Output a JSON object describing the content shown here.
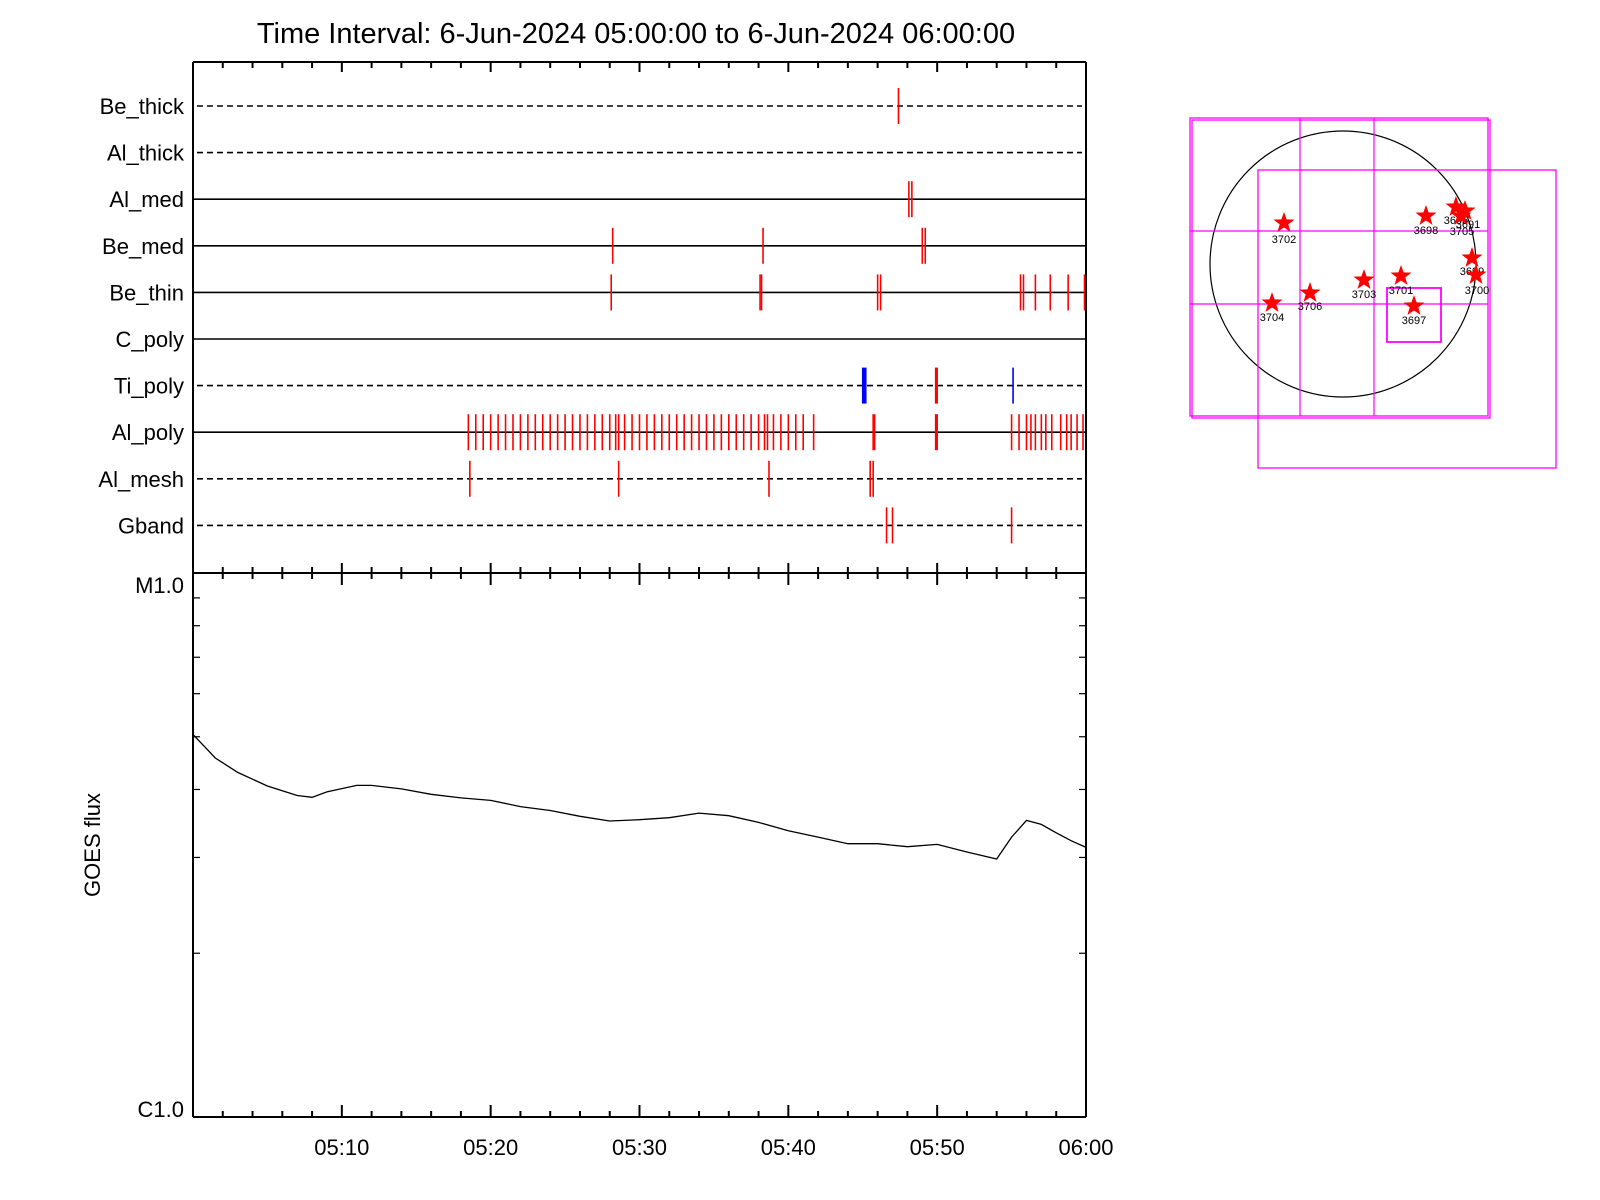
{
  "title": "Time Interval:  6-Jun-2024 05:00:00 to  6-Jun-2024 06:00:00",
  "chart_data": [
    {
      "type": "event-timeline",
      "xlim": [
        "05:00",
        "06:00"
      ],
      "x_tick_labels": [
        "05:10",
        "05:20",
        "05:30",
        "05:40",
        "05:50",
        "06:00"
      ],
      "colors": {
        "frame": "#000000",
        "event_red": "#ff0000",
        "event_blue": "#0000ff"
      },
      "rows": [
        {
          "label": "Be_thick",
          "style": "dashed",
          "events": [
            {
              "t": "05:47.4",
              "color": "red"
            }
          ]
        },
        {
          "label": "Al_thick",
          "style": "dashed",
          "events": []
        },
        {
          "label": "Al_med",
          "style": "solid",
          "events": [
            {
              "t": "05:48.1",
              "color": "red"
            },
            {
              "t": "05:48.3",
              "color": "red"
            }
          ]
        },
        {
          "label": "Be_med",
          "style": "solid",
          "events": [
            {
              "t": "05:28.2",
              "color": "red"
            },
            {
              "t": "05:38.3",
              "color": "red"
            },
            {
              "t": "05:49.0",
              "color": "red"
            },
            {
              "t": "05:49.2",
              "color": "red"
            }
          ]
        },
        {
          "label": "Be_thin",
          "style": "solid",
          "events": [
            {
              "t": "05:28.1",
              "color": "red"
            },
            {
              "t": "05:38.1",
              "color": "red"
            },
            {
              "t": "05:38.2",
              "color": "red"
            },
            {
              "t": "05:46.0",
              "color": "red"
            },
            {
              "t": "05:46.2",
              "color": "red"
            },
            {
              "t": "05:55.6",
              "color": "red"
            },
            {
              "t": "05:55.8",
              "color": "red"
            },
            {
              "t": "05:56.6",
              "color": "red"
            },
            {
              "t": "05:57.6",
              "color": "red"
            },
            {
              "t": "05:58.8",
              "color": "red"
            },
            {
              "t": "05:59.9",
              "color": "red"
            }
          ]
        },
        {
          "label": "C_poly",
          "style": "solid",
          "events": []
        },
        {
          "label": "Ti_poly",
          "style": "dashed",
          "events": [
            {
              "t": "05:45.0",
              "color": "blue"
            },
            {
              "t": "05:45.1",
              "color": "blue"
            },
            {
              "t": "05:45.2",
              "color": "blue"
            },
            {
              "t": "05:49.9",
              "color": "red"
            },
            {
              "t": "05:50.0",
              "color": "red"
            },
            {
              "t": "05:55.1",
              "color": "blue"
            }
          ]
        },
        {
          "label": "Al_poly",
          "style": "solid",
          "events": [
            {
              "t": "05:18.5",
              "color": "red"
            },
            {
              "t": "05:19.0",
              "color": "red"
            },
            {
              "t": "05:19.5",
              "color": "red"
            },
            {
              "t": "05:20.0",
              "color": "red"
            },
            {
              "t": "05:20.5",
              "color": "red"
            },
            {
              "t": "05:21.0",
              "color": "red"
            },
            {
              "t": "05:21.5",
              "color": "red"
            },
            {
              "t": "05:22.0",
              "color": "red"
            },
            {
              "t": "05:22.5",
              "color": "red"
            },
            {
              "t": "05:23.0",
              "color": "red"
            },
            {
              "t": "05:23.5",
              "color": "red"
            },
            {
              "t": "05:24.0",
              "color": "red"
            },
            {
              "t": "05:24.5",
              "color": "red"
            },
            {
              "t": "05:25.0",
              "color": "red"
            },
            {
              "t": "05:25.5",
              "color": "red"
            },
            {
              "t": "05:26.0",
              "color": "red"
            },
            {
              "t": "05:26.5",
              "color": "red"
            },
            {
              "t": "05:27.0",
              "color": "red"
            },
            {
              "t": "05:27.5",
              "color": "red"
            },
            {
              "t": "05:28.0",
              "color": "red"
            },
            {
              "t": "05:28.4",
              "color": "red"
            },
            {
              "t": "05:28.6",
              "color": "red"
            },
            {
              "t": "05:29.0",
              "color": "red"
            },
            {
              "t": "05:29.5",
              "color": "red"
            },
            {
              "t": "05:30.0",
              "color": "red"
            },
            {
              "t": "05:30.5",
              "color": "red"
            },
            {
              "t": "05:31.0",
              "color": "red"
            },
            {
              "t": "05:31.5",
              "color": "red"
            },
            {
              "t": "05:32.0",
              "color": "red"
            },
            {
              "t": "05:32.5",
              "color": "red"
            },
            {
              "t": "05:33.0",
              "color": "red"
            },
            {
              "t": "05:33.5",
              "color": "red"
            },
            {
              "t": "05:34.0",
              "color": "red"
            },
            {
              "t": "05:34.5",
              "color": "red"
            },
            {
              "t": "05:35.0",
              "color": "red"
            },
            {
              "t": "05:35.5",
              "color": "red"
            },
            {
              "t": "05:36.0",
              "color": "red"
            },
            {
              "t": "05:36.5",
              "color": "red"
            },
            {
              "t": "05:37.0",
              "color": "red"
            },
            {
              "t": "05:37.5",
              "color": "red"
            },
            {
              "t": "05:38.0",
              "color": "red"
            },
            {
              "t": "05:38.4",
              "color": "red"
            },
            {
              "t": "05:38.6",
              "color": "red"
            },
            {
              "t": "05:39.0",
              "color": "red"
            },
            {
              "t": "05:39.5",
              "color": "red"
            },
            {
              "t": "05:40.0",
              "color": "red"
            },
            {
              "t": "05:40.5",
              "color": "red"
            },
            {
              "t": "05:41.0",
              "color": "red"
            },
            {
              "t": "05:41.7",
              "color": "red"
            },
            {
              "t": "05:45.7",
              "color": "red"
            },
            {
              "t": "05:45.8",
              "color": "red"
            },
            {
              "t": "05:49.9",
              "color": "red"
            },
            {
              "t": "05:50.0",
              "color": "red"
            },
            {
              "t": "05:55.0",
              "color": "red"
            },
            {
              "t": "05:55.5",
              "color": "red"
            },
            {
              "t": "05:56.0",
              "color": "red"
            },
            {
              "t": "05:56.3",
              "color": "red"
            },
            {
              "t": "05:56.6",
              "color": "red"
            },
            {
              "t": "05:57.0",
              "color": "red"
            },
            {
              "t": "05:57.3",
              "color": "red"
            },
            {
              "t": "05:57.7",
              "color": "red"
            },
            {
              "t": "05:58.3",
              "color": "red"
            },
            {
              "t": "05:58.7",
              "color": "red"
            },
            {
              "t": "05:59.0",
              "color": "red"
            },
            {
              "t": "05:59.4",
              "color": "red"
            },
            {
              "t": "05:59.8",
              "color": "red"
            }
          ]
        },
        {
          "label": "Al_mesh",
          "style": "dashed",
          "events": [
            {
              "t": "05:18.6",
              "color": "red"
            },
            {
              "t": "05:28.6",
              "color": "red"
            },
            {
              "t": "05:38.7",
              "color": "red"
            },
            {
              "t": "05:45.5",
              "color": "red"
            },
            {
              "t": "05:45.7",
              "color": "red"
            }
          ]
        },
        {
          "label": "Gband",
          "style": "dashed",
          "events": [
            {
              "t": "05:46.6",
              "color": "red"
            },
            {
              "t": "05:47.0",
              "color": "red"
            },
            {
              "t": "05:55.0",
              "color": "red"
            }
          ]
        }
      ]
    },
    {
      "type": "line",
      "ylabel": "GOES flux",
      "y_scale": "log",
      "ylim": [
        "C1.0",
        "M1.0"
      ],
      "y_tick_labels": [
        "M1.0",
        "C1.0"
      ],
      "xlim": [
        "05:00",
        "06:00"
      ],
      "x_tick_labels": [
        "05:10",
        "05:20",
        "05:30",
        "05:40",
        "05:50",
        "06:00"
      ],
      "line_color": "#000000",
      "series": [
        {
          "points": [
            [
              "05:00.0",
              5.05
            ],
            [
              "05:01.5",
              4.57
            ],
            [
              "05:03.0",
              4.3
            ],
            [
              "05:05.0",
              4.06
            ],
            [
              "05:07.0",
              3.9
            ],
            [
              "05:08.0",
              3.87
            ],
            [
              "05:09.0",
              3.96
            ],
            [
              "05:11.0",
              4.07
            ],
            [
              "05:12.0",
              4.07
            ],
            [
              "05:14.0",
              4.01
            ],
            [
              "05:16.0",
              3.92
            ],
            [
              "05:18.0",
              3.86
            ],
            [
              "05:20.0",
              3.82
            ],
            [
              "05:22.0",
              3.72
            ],
            [
              "05:24.0",
              3.66
            ],
            [
              "05:26.0",
              3.57
            ],
            [
              "05:28.0",
              3.5
            ],
            [
              "05:30.0",
              3.52
            ],
            [
              "05:32.0",
              3.55
            ],
            [
              "05:34.0",
              3.62
            ],
            [
              "05:36.0",
              3.58
            ],
            [
              "05:38.0",
              3.48
            ],
            [
              "05:40.0",
              3.36
            ],
            [
              "05:42.0",
              3.27
            ],
            [
              "05:44.0",
              3.18
            ],
            [
              "05:46.0",
              3.18
            ],
            [
              "05:48.0",
              3.14
            ],
            [
              "05:50.0",
              3.17
            ],
            [
              "05:52.0",
              3.07
            ],
            [
              "05:54.0",
              2.98
            ],
            [
              "05:55.0",
              3.27
            ],
            [
              "05:56.0",
              3.51
            ],
            [
              "05:57.0",
              3.45
            ],
            [
              "05:58.0",
              3.33
            ],
            [
              "05:59.0",
              3.22
            ],
            [
              "06:00.0",
              3.13
            ]
          ]
        }
      ]
    },
    {
      "type": "scatter",
      "subtype": "solar-disk-map",
      "colors": {
        "disk": "#000000",
        "fov": "#ff00ff",
        "region": "#ff0000"
      },
      "active_regions": [
        {
          "label": "3702"
        },
        {
          "label": "3698"
        },
        {
          "label": "3695"
        },
        {
          "label": "3691"
        },
        {
          "label": "3705"
        },
        {
          "label": "3699"
        },
        {
          "label": "3700"
        },
        {
          "label": "3704"
        },
        {
          "label": "3706"
        },
        {
          "label": "3703"
        },
        {
          "label": "3701"
        },
        {
          "label": "3697"
        }
      ]
    }
  ]
}
